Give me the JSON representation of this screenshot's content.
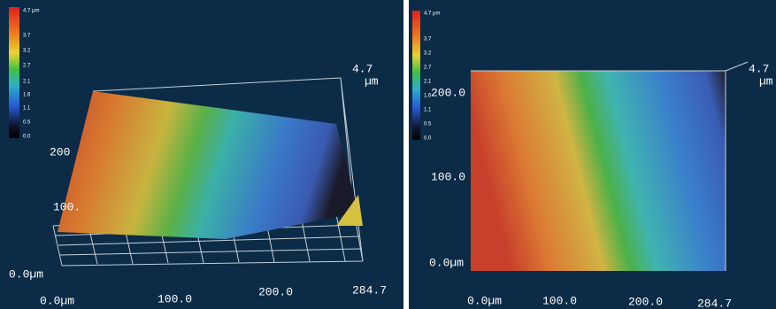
{
  "panels": [
    {
      "colorbar_labels": [
        "4.7 µm",
        "3.7",
        "3.2",
        "2.7",
        "2.1",
        "1.6",
        "1.1",
        "0.5",
        "0.0"
      ],
      "axis_labels": [
        "4.7",
        "µm",
        "200",
        "100.",
        "0.0µm",
        "0.0µm",
        "100.0",
        "200.0",
        "284.7"
      ]
    },
    {
      "colorbar_labels": [
        "4.7 µm",
        "3.7",
        "3.2",
        "2.7",
        "2.1",
        "1.6",
        "1.1",
        "0.5",
        "0.0"
      ],
      "axis_labels": [
        "4.7",
        "µm",
        "200.0",
        "100.0",
        "0.0µm",
        "0.0µm",
        "100.0",
        "200.0",
        "284.7"
      ]
    }
  ]
}
